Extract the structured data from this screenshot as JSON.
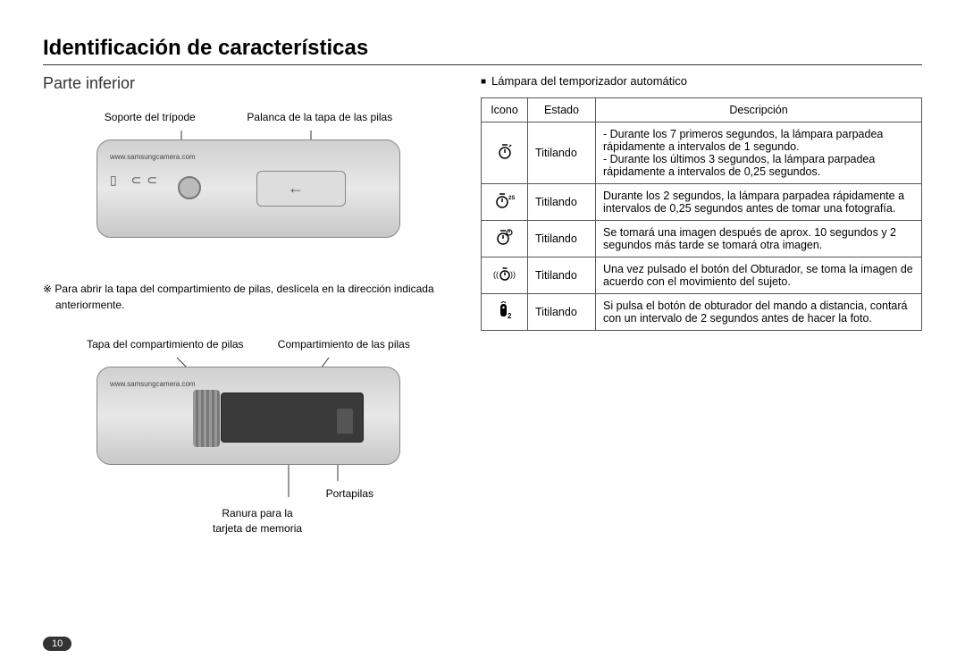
{
  "page_number": "10",
  "title": "Identificación de características",
  "left": {
    "subtitle": "Parte inferior",
    "fig1": {
      "label_tripod": "Soporte del trípode",
      "label_lever": "Palanca de la tapa de las pilas",
      "url": "www.samsungcamera.com"
    },
    "note": "※ Para abrir la tapa del compartimiento de pilas, deslícela en la dirección indicada anteriormente.",
    "fig2": {
      "label_cover": "Tapa del compartimiento de pilas",
      "label_compartment": "Compartimiento de las pilas",
      "url": "www.samsungcamera.com",
      "label_holder": "Portapilas",
      "label_card_a": "Ranura para la",
      "label_card_b": "tarjeta de memoria"
    }
  },
  "right": {
    "heading": "Lámpara del temporizador automático",
    "table": {
      "head": {
        "icon": "Icono",
        "state": "Estado",
        "desc": "Descripción"
      },
      "rows": [
        {
          "icon_html": "timer",
          "state": "Titilando",
          "desc": "- Durante los 7 primeros segundos, la lámpara parpadea rápidamente a intervalos de 1 segundo.\n- Durante los últimos 3 segundos, la lámpara parpadea rápidamente a intervalos de 0,25 segundos."
        },
        {
          "icon_html": "timer2s",
          "state": "Titilando",
          "desc": "Durante los 2 segundos, la lámpara parpadea rápidamente a intervalos de 0,25 segundos antes de tomar una fotografía."
        },
        {
          "icon_html": "timer-double",
          "state": "Titilando",
          "desc": "Se tomará una imagen después de aprox. 10 segundos y 2 segundos más tarde se tomará otra imagen."
        },
        {
          "icon_html": "timer-motion",
          "state": "Titilando",
          "desc": "Una vez pulsado el botón del Obturador, se toma la imagen de acuerdo con el movimiento del sujeto."
        },
        {
          "icon_html": "remote2",
          "state": "Titilando",
          "desc": "Si pulsa el botón de obturador del mando a distancia, contará con un intervalo de 2 segundos antes de hacer la foto."
        }
      ]
    }
  },
  "icons": {
    "timer": "<svg width='20' height='20' viewBox='0 0 20 20'><circle cx='10' cy='12' r='6' fill='none' stroke='#000' stroke-width='1.5'/><line x1='10' y1='12' x2='10' y2='8' stroke='#000' stroke-width='1.5'/><line x1='7' y1='3' x2='13' y2='3' stroke='#000' stroke-width='1.5'/><line x1='15' y1='5' x2='17' y2='3' stroke='#000' stroke-width='1.5'/></svg>",
    "timer2s": "<svg width='22' height='20' viewBox='0 0 22 20'><circle cx='8' cy='12' r='6' fill='none' stroke='#000' stroke-width='1.5'/><line x1='8' y1='12' x2='8' y2='8' stroke='#000' stroke-width='1.5'/><line x1='5' y1='3' x2='11' y2='3' stroke='#000' stroke-width='1.5'/><text x='15' y='9' font-size='6' font-weight='bold'>2S</text></svg>",
    "timer-double": "<svg width='22' height='22' viewBox='0 0 22 22'><circle cx='9' cy='13' r='6' fill='none' stroke='#000' stroke-width='1.5'/><line x1='9' y1='13' x2='9' y2='9' stroke='#000' stroke-width='1.5'/><line x1='6' y1='4' x2='12' y2='4' stroke='#000' stroke-width='1.5'/><circle cx='16' cy='6' r='3' fill='none' stroke='#000' stroke-width='1.2'/><line x1='16' y1='6' x2='16' y2='4' stroke='#000' stroke-width='1.2'/></svg>",
    "timer-motion": "<svg width='26' height='20' viewBox='0 0 26 20'><text x='0' y='14' font-size='9'>((</text><circle cx='13' cy='12' r='5' fill='none' stroke='#000' stroke-width='1.5'/><line x1='13' y1='12' x2='13' y2='8.5' stroke='#000' stroke-width='1.5'/><line x1='10.5' y1='4' x2='15.5' y2='4' stroke='#000' stroke-width='1.5'/><text x='19' y='14' font-size='9'>))</text></svg>",
    "remote2": "<svg width='20' height='22' viewBox='0 0 20 22'><rect x='5' y='4' width='7' height='14' rx='3' fill='#000'/><circle cx='8.5' cy='8' r='1.2' fill='#fff'/><path d='M 6 3 Q 8.5 0 11 3' fill='none' stroke='#000' stroke-width='1'/><text x='13' y='20' font-size='8' font-weight='bold'>2</text></svg>"
  },
  "colors": {
    "border": "#555555",
    "text": "#222222",
    "camera_body": "#d8d8d8"
  }
}
